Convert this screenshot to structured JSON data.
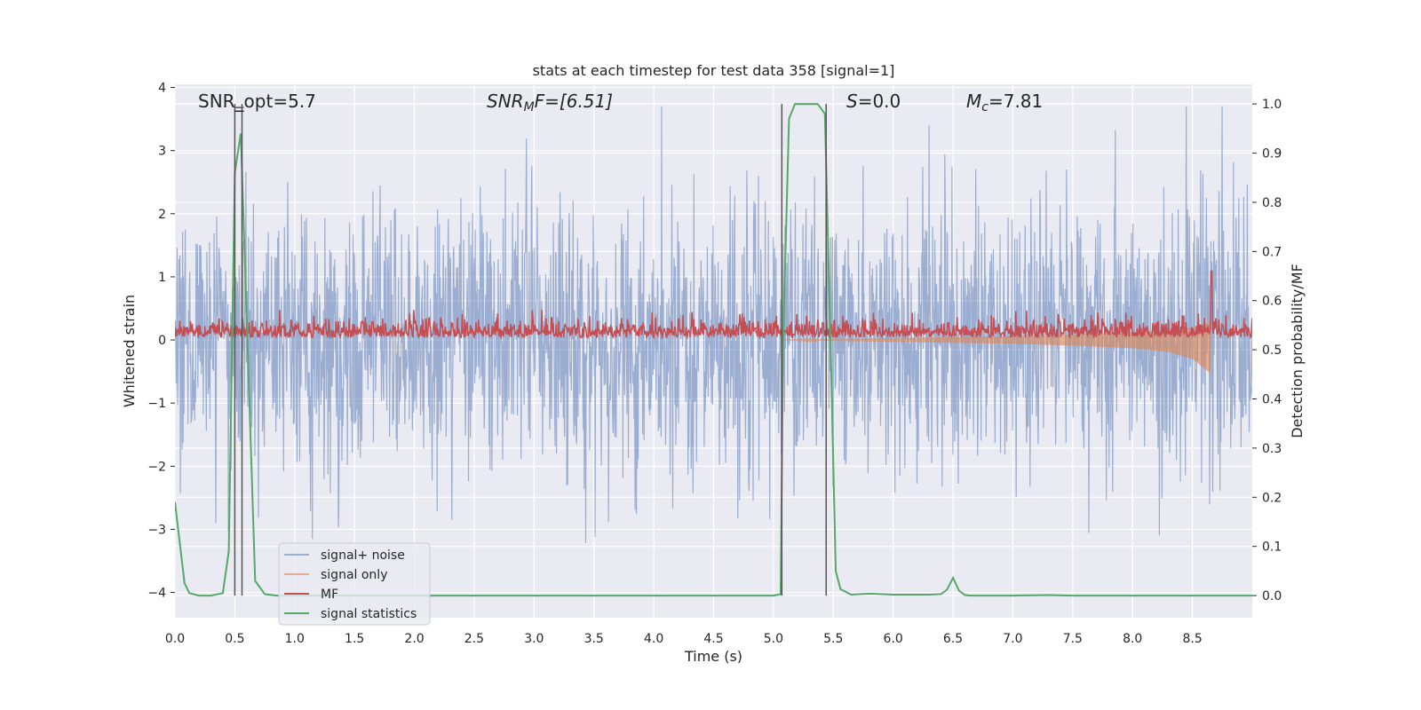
{
  "chart_data": {
    "type": "line",
    "title": "stats at each timestep for test data 358 [signal=1]",
    "xlabel": "Time (s)",
    "ylabel": "Whitened strain",
    "y2label": "Detection probability/MF",
    "xlim": [
      0,
      9.0
    ],
    "ylim": [
      -4.4,
      4.05
    ],
    "y2lim": [
      -0.045,
      1.04
    ],
    "x_ticks": [
      0.0,
      0.5,
      1.0,
      1.5,
      2.0,
      2.5,
      3.0,
      3.5,
      4.0,
      4.5,
      5.0,
      5.5,
      6.0,
      6.5,
      7.0,
      7.5,
      8.0,
      8.5
    ],
    "x_tick_labels": [
      "0.0",
      "0.5",
      "1.0",
      "1.5",
      "2.0",
      "2.5",
      "3.0",
      "3.5",
      "4.0",
      "4.5",
      "5.0",
      "5.5",
      "6.0",
      "6.5",
      "7.0",
      "7.5",
      "8.0",
      "8.5"
    ],
    "y_ticks": [
      -4,
      -3,
      -2,
      -1,
      0,
      1,
      2,
      3,
      4
    ],
    "y_tick_labels": [
      "−4",
      "−3",
      "−2",
      "−1",
      "0",
      "1",
      "2",
      "3",
      "4"
    ],
    "y2_ticks": [
      0.0,
      0.1,
      0.2,
      0.3,
      0.4,
      0.5,
      0.6,
      0.7,
      0.8,
      0.9,
      1.0
    ],
    "y2_tick_labels": [
      "0.0",
      "0.1",
      "0.2",
      "0.3",
      "0.4",
      "0.5",
      "0.6",
      "0.7",
      "0.8",
      "0.9",
      "1.0"
    ],
    "grid": true,
    "legend_position": "lower-left",
    "annotations": {
      "snr_opt": "SNR_opt=5.7",
      "snr_mf_base": "SNR",
      "snr_mf_sub": "M",
      "snr_mf_rest": "F=[6.51]",
      "s_italic": "S",
      "s_rest": "=0.0",
      "mc_base": "M",
      "mc_sub": "c",
      "mc_rest": "=7.81"
    },
    "vlines_x": [
      0.5,
      0.56,
      5.07,
      5.44
    ],
    "series": [
      {
        "name": "signal+ noise",
        "color": "#4c72b0",
        "opacity": 0.5,
        "axis": "left",
        "x_range": [
          0.0,
          9.0
        ],
        "band_mean": 0.0,
        "band_sd": 1.05,
        "band_peak_max": 3.7,
        "band_peak_min": -4.0
      },
      {
        "name": "signal only",
        "color": "#dd8452",
        "opacity": 0.6,
        "axis": "left",
        "x": [
          5.07,
          6.0,
          7.0,
          7.5,
          8.0,
          8.3,
          8.5,
          8.65
        ],
        "upper": [
          0.0,
          0.03,
          0.06,
          0.09,
          0.12,
          0.15,
          0.2,
          0.28
        ],
        "lower": [
          0.0,
          -0.03,
          -0.06,
          -0.09,
          -0.13,
          -0.19,
          -0.3,
          -0.52
        ]
      },
      {
        "name": "MF",
        "color": "#c44e52",
        "axis": "right",
        "x_range": [
          0.0,
          9.0
        ],
        "baseline": 0.525,
        "range": [
          0.5,
          0.6
        ],
        "peak_x": 8.66,
        "peak_y": 0.66
      },
      {
        "name": "signal statistics",
        "color": "#55a868",
        "axis": "right",
        "x": [
          0.0,
          0.08,
          0.12,
          0.2,
          0.3,
          0.4,
          0.45,
          0.5,
          0.55,
          0.6,
          0.67,
          0.75,
          0.85,
          1.0,
          1.5,
          2.0,
          2.5,
          3.0,
          3.5,
          4.0,
          4.5,
          5.0,
          5.06,
          5.08,
          5.13,
          5.18,
          5.37,
          5.43,
          5.48,
          5.52,
          5.56,
          5.65,
          5.8,
          6.0,
          6.3,
          6.4,
          6.45,
          6.5,
          6.55,
          6.6,
          6.65,
          6.7,
          7.0,
          7.3,
          7.5,
          8.0,
          8.5,
          9.0
        ],
        "y": [
          0.19,
          0.025,
          0.005,
          0.0,
          0.0,
          0.005,
          0.09,
          0.86,
          0.94,
          0.56,
          0.03,
          0.003,
          0.0,
          0.0,
          0.0,
          0.0,
          0.0,
          0.0,
          0.0,
          0.0,
          0.0,
          0.0,
          0.003,
          0.51,
          0.97,
          1.0,
          1.0,
          0.98,
          0.48,
          0.05,
          0.013,
          0.002,
          0.004,
          0.002,
          0.002,
          0.003,
          0.012,
          0.036,
          0.01,
          0.001,
          0.0,
          0.0,
          0.0,
          0.001,
          0.0,
          0.0,
          0.0,
          0.0
        ]
      }
    ]
  }
}
